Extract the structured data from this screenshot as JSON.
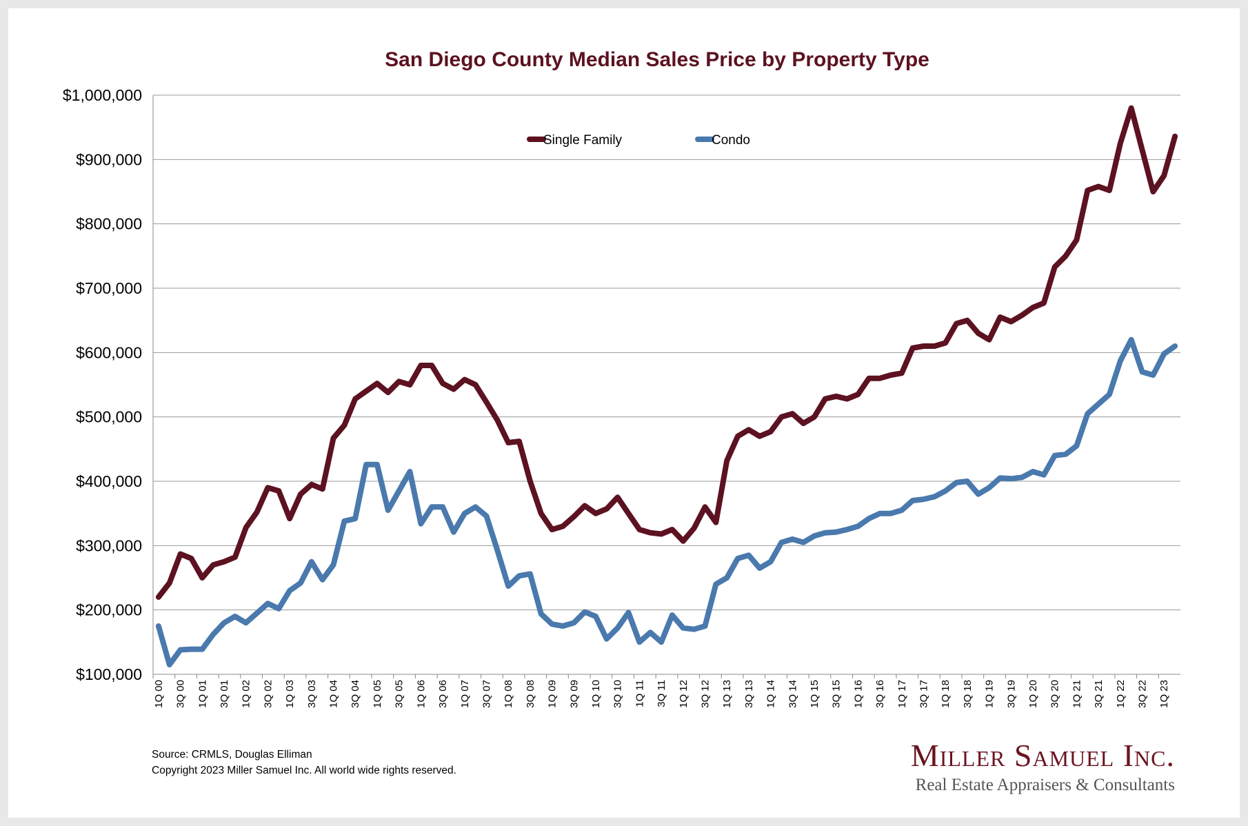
{
  "chart_data": {
    "type": "line",
    "title": "San Diego County Median Sales Price by Property Type",
    "ylim": [
      100000,
      1000000
    ],
    "yticks": [
      "$100,000",
      "$200,000",
      "$300,000",
      "$400,000",
      "$500,000",
      "$600,000",
      "$700,000",
      "$800,000",
      "$900,000",
      "$1,000,000"
    ],
    "ytick_values": [
      100000,
      200000,
      300000,
      400000,
      500000,
      600000,
      700000,
      800000,
      900000,
      1000000
    ],
    "grid": true,
    "legend_position": "top",
    "x": [
      "1Q 00",
      "2Q 00",
      "3Q 00",
      "4Q 00",
      "1Q 01",
      "2Q 01",
      "3Q 01",
      "4Q 01",
      "1Q 02",
      "2Q 02",
      "3Q 02",
      "4Q 02",
      "1Q 03",
      "2Q 03",
      "3Q 03",
      "4Q 03",
      "1Q 04",
      "2Q 04",
      "3Q 04",
      "4Q 04",
      "1Q 05",
      "2Q 05",
      "3Q 05",
      "4Q 05",
      "1Q 06",
      "2Q 06",
      "3Q 06",
      "4Q 06",
      "1Q 07",
      "2Q 07",
      "3Q 07",
      "4Q 07",
      "1Q 08",
      "2Q 08",
      "3Q 08",
      "4Q 08",
      "1Q 09",
      "2Q 09",
      "3Q 09",
      "4Q 09",
      "1Q 10",
      "2Q 10",
      "3Q 10",
      "4Q 10",
      "1Q 11",
      "2Q 11",
      "3Q 11",
      "4Q 11",
      "1Q 12",
      "2Q 12",
      "3Q 12",
      "4Q 12",
      "1Q 13",
      "2Q 13",
      "3Q 13",
      "4Q 13",
      "1Q 14",
      "2Q 14",
      "3Q 14",
      "4Q 14",
      "1Q 15",
      "2Q 15",
      "3Q 15",
      "4Q 15",
      "1Q 16",
      "2Q 16",
      "3Q 16",
      "4Q 16",
      "1Q 17",
      "2Q 17",
      "3Q 17",
      "4Q 17",
      "1Q 18",
      "2Q 18",
      "3Q 18",
      "4Q 18",
      "1Q 19",
      "2Q 19",
      "3Q 19",
      "4Q 19",
      "1Q 20",
      "2Q 20",
      "3Q 20",
      "4Q 20",
      "1Q 21",
      "2Q 21",
      "3Q 21",
      "4Q 21",
      "1Q 22",
      "2Q 22",
      "3Q 22",
      "4Q 22",
      "1Q 23",
      "2Q 23"
    ],
    "xtick_labels": [
      "1Q 00",
      "3Q 00",
      "1Q 01",
      "3Q 01",
      "1Q 02",
      "3Q 02",
      "1Q 03",
      "3Q 03",
      "1Q 04",
      "3Q 04",
      "1Q 05",
      "3Q 05",
      "1Q 06",
      "3Q 06",
      "1Q 07",
      "3Q 07",
      "1Q 08",
      "3Q 08",
      "1Q 09",
      "3Q 09",
      "1Q 10",
      "3Q 10",
      "1Q 11",
      "3Q 11",
      "1Q 12",
      "3Q 12",
      "1Q 13",
      "3Q 13",
      "1Q 14",
      "3Q 14",
      "1Q 15",
      "3Q 15",
      "1Q 16",
      "3Q 16",
      "1Q 17",
      "3Q 17",
      "1Q 18",
      "3Q 18",
      "1Q 19",
      "3Q 19",
      "1Q 20",
      "3Q 20",
      "1Q 21",
      "3Q 21",
      "1Q 22",
      "3Q 22",
      "1Q 23"
    ],
    "series": [
      {
        "name": "Single Family",
        "color": "#5c1220",
        "values": [
          220000,
          242000,
          287000,
          280000,
          250000,
          270000,
          275000,
          282000,
          328000,
          352000,
          390000,
          385000,
          342000,
          380000,
          395000,
          388000,
          467000,
          487000,
          528000,
          540000,
          552000,
          538000,
          555000,
          550000,
          580000,
          580000,
          552000,
          543000,
          558000,
          550000,
          523000,
          495000,
          460000,
          462000,
          400000,
          350000,
          325000,
          330000,
          345000,
          362000,
          350000,
          357000,
          375000,
          350000,
          325000,
          320000,
          318000,
          325000,
          307000,
          327000,
          360000,
          336000,
          432000,
          470000,
          480000,
          470000,
          477000,
          500000,
          505000,
          490000,
          500000,
          528000,
          532000,
          528000,
          535000,
          560000,
          560000,
          565000,
          568000,
          607000,
          610000,
          610000,
          615000,
          645000,
          650000,
          630000,
          620000,
          655000,
          648000,
          658000,
          670000,
          677000,
          733000,
          750000,
          775000,
          852000,
          858000,
          852000,
          925000,
          980000,
          915000,
          850000,
          875000,
          936000
        ]
      },
      {
        "name": "Condo",
        "color": "#4a79ad",
        "values": [
          175000,
          115000,
          138000,
          139000,
          139000,
          162000,
          180000,
          190000,
          180000,
          195000,
          210000,
          202000,
          230000,
          242000,
          275000,
          247000,
          270000,
          338000,
          342000,
          426000,
          426000,
          355000,
          385000,
          415000,
          334000,
          360000,
          360000,
          321000,
          350000,
          360000,
          346000,
          293000,
          237000,
          253000,
          256000,
          194000,
          178000,
          175000,
          180000,
          197000,
          190000,
          155000,
          172000,
          196000,
          150000,
          165000,
          150000,
          192000,
          172000,
          170000,
          175000,
          240000,
          250000,
          280000,
          285000,
          265000,
          275000,
          305000,
          310000,
          305000,
          315000,
          320000,
          321000,
          325000,
          330000,
          342000,
          350000,
          350000,
          355000,
          370000,
          372000,
          376000,
          385000,
          398000,
          400000,
          380000,
          390000,
          405000,
          404000,
          406000,
          415000,
          410000,
          440000,
          442000,
          455000,
          505000,
          520000,
          535000,
          587000,
          620000,
          570000,
          565000,
          598000,
          610000
        ]
      }
    ]
  },
  "footer": {
    "source": "Source: CRMLS, Douglas Elliman",
    "copyright": "Copyright 2023 Miller Samuel Inc.  All world wide rights reserved."
  },
  "brand": {
    "name": "Miller Samuel Inc.",
    "tagline": "Real Estate Appraisers & Consultants"
  }
}
